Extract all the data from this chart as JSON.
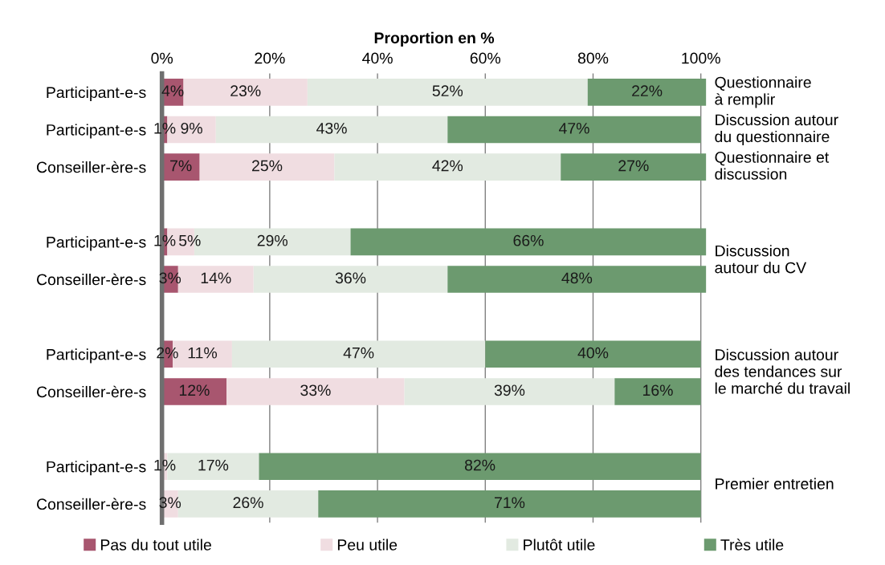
{
  "chart_data": {
    "type": "bar",
    "orientation": "horizontal",
    "stacked": true,
    "xlabel": "Proportion en %",
    "categories": [
      "Participant-e-s",
      "Participant-e-s",
      "Conseiller-ère-s",
      null,
      "Participant-e-s",
      "Conseiller-ère-s",
      null,
      "Participant-e-s",
      "Conseiller-ère-s",
      null,
      "Participant-e-s",
      "Conseiller-ère-s"
    ],
    "series": [
      {
        "name": "Pas du tout utile",
        "color": "#a8566f",
        "values": [
          4,
          1,
          7,
          null,
          1,
          3,
          null,
          2,
          12,
          null,
          null,
          null
        ],
        "value_labels": [
          "4%",
          "1%",
          "7%",
          null,
          "1%",
          "3%",
          null,
          "2%",
          "12%",
          null,
          null,
          null
        ]
      },
      {
        "name": "Peu utile",
        "color": "#f0dde1",
        "values": [
          23,
          9,
          25,
          null,
          5,
          14,
          null,
          11,
          33,
          null,
          1,
          3
        ],
        "value_labels": [
          "23%",
          "9%",
          "25%",
          null,
          "5%",
          "14%",
          null,
          "11%",
          "33%",
          null,
          "1%",
          "3%"
        ]
      },
      {
        "name": "Plutôt utile",
        "color": "#e2eae1",
        "values": [
          52,
          43,
          42,
          null,
          29,
          36,
          null,
          47,
          39,
          null,
          17,
          26
        ],
        "value_labels": [
          "52%",
          "43%",
          "42%",
          null,
          "29%",
          "36%",
          null,
          "47%",
          "39%",
          null,
          "17%",
          "26%"
        ]
      },
      {
        "name": "Très utile",
        "color": "#6c9a6f",
        "values": [
          22,
          47,
          27,
          null,
          66,
          48,
          null,
          40,
          16,
          null,
          82,
          71
        ],
        "value_labels": [
          "22%",
          "47%",
          "27%",
          null,
          "66%",
          "48%",
          null,
          "40%",
          "16%",
          null,
          "82%",
          "71%"
        ]
      }
    ],
    "xlim": [
      0,
      101
    ],
    "xticks": [
      {
        "value": 0,
        "label": "0%"
      },
      {
        "value": 20,
        "label": "20%"
      },
      {
        "value": 40,
        "label": "40%"
      },
      {
        "value": 60,
        "label": "60%"
      },
      {
        "value": 80,
        "label": "80%"
      },
      {
        "value": 100,
        "label": "100%"
      }
    ],
    "grid": "x",
    "legend": "bottom",
    "annotations": [
      "Questionnaire\nà remplir",
      "Discussion autour\ndu questionnaire",
      "Questionnaire et\ndiscussion",
      "Discussion\nautour du CV",
      "Discussion autour\ndes tendances sur\nle marché du travail",
      "Premier entretien"
    ]
  }
}
